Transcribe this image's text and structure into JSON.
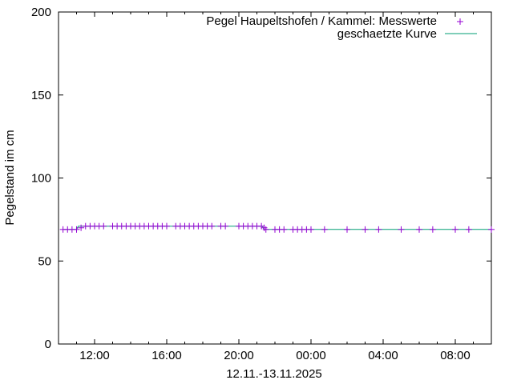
{
  "chart_data": {
    "type": "scatter",
    "title": "",
    "xlabel": "12.11.-13.11.2025",
    "ylabel": "Pegelstand im cm",
    "ylim": [
      0,
      200
    ],
    "yticks": [
      0,
      50,
      100,
      150,
      200
    ],
    "xlim_hours": [
      10,
      34
    ],
    "xticks": [
      {
        "label": "12:00",
        "hour": 12
      },
      {
        "label": "16:00",
        "hour": 16
      },
      {
        "label": "20:00",
        "hour": 20
      },
      {
        "label": "00:00",
        "hour": 24
      },
      {
        "label": "04:00",
        "hour": 28
      },
      {
        "label": "08:00",
        "hour": 32
      }
    ],
    "grid": false,
    "legend_position": "top-right",
    "series": [
      {
        "name": "Pegel Haupeltshofen / Kammel: Messwerte",
        "style": "points-plus",
        "color": "#9400D3",
        "x_hours": [
          10.25,
          10.5,
          10.75,
          11.0,
          11.25,
          11.5,
          11.75,
          12.0,
          12.25,
          12.5,
          13.0,
          13.25,
          13.5,
          13.75,
          14.0,
          14.25,
          14.5,
          14.75,
          15.0,
          15.25,
          15.5,
          15.75,
          16.0,
          16.5,
          16.75,
          17.0,
          17.25,
          17.5,
          17.75,
          18.0,
          18.25,
          18.5,
          19.0,
          19.25,
          20.0,
          20.25,
          20.5,
          20.75,
          21.0,
          21.25,
          21.4,
          21.5,
          22.0,
          22.25,
          22.5,
          23.0,
          23.25,
          23.5,
          23.75,
          24.0,
          24.75,
          26.0,
          27.0,
          27.75,
          29.0,
          30.0,
          30.75,
          32.0,
          32.75,
          34.0
        ],
        "values": [
          69,
          69,
          69,
          69,
          70,
          71,
          71,
          71,
          71,
          71,
          71,
          71,
          71,
          71,
          71,
          71,
          71,
          71,
          71,
          71,
          71,
          71,
          71,
          71,
          71,
          71,
          71,
          71,
          71,
          71,
          71,
          71,
          71,
          71,
          71,
          71,
          71,
          71,
          71,
          71,
          70,
          69,
          69,
          69,
          69,
          69,
          69,
          69,
          69,
          69,
          69,
          69,
          69,
          69,
          69,
          69,
          69,
          69,
          69,
          69
        ]
      },
      {
        "name": "geschaetzte Kurve",
        "style": "line",
        "color": "#009E73",
        "x_hours": [
          10.25,
          11.0,
          11.1,
          21.3,
          21.4,
          34.0
        ],
        "values": [
          69,
          69,
          71,
          71,
          69,
          69
        ]
      }
    ]
  }
}
